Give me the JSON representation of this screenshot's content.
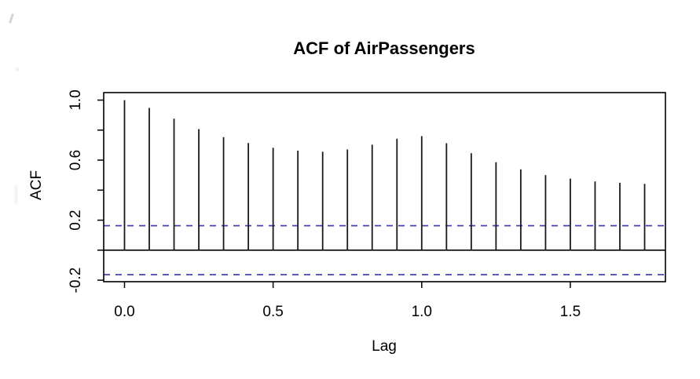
{
  "chart_data": {
    "type": "bar",
    "variant": "acf-stem-plot",
    "title": "ACF of AirPassengers",
    "xlabel": "Lag",
    "ylabel": "ACF",
    "x": [
      0,
      0.0833,
      0.1667,
      0.25,
      0.3333,
      0.4167,
      0.5,
      0.5833,
      0.6667,
      0.75,
      0.8333,
      0.9167,
      1.0,
      1.0833,
      1.1667,
      1.25,
      1.3333,
      1.4167,
      1.5,
      1.5833,
      1.6667,
      1.75
    ],
    "values": [
      1.0,
      0.948,
      0.876,
      0.807,
      0.753,
      0.714,
      0.682,
      0.663,
      0.656,
      0.671,
      0.703,
      0.743,
      0.76,
      0.713,
      0.646,
      0.586,
      0.538,
      0.5,
      0.477,
      0.458,
      0.449,
      0.442
    ],
    "zero_line": 0,
    "confidence_bounds": [
      -0.163,
      0.163
    ],
    "confidence_line_style": "dashed",
    "xlim": [
      -0.07,
      1.82
    ],
    "ylim": [
      -0.21,
      1.05
    ],
    "x_ticks": [
      {
        "v": 0.0,
        "label": "0.0"
      },
      {
        "v": 0.5,
        "label": "0.5"
      },
      {
        "v": 1.0,
        "label": "1.0"
      },
      {
        "v": 1.5,
        "label": "1.5"
      }
    ],
    "y_ticks": [
      {
        "v": -0.2,
        "label": "-0.2"
      },
      {
        "v": 0.0,
        "label": ""
      },
      {
        "v": 0.2,
        "label": "0.2"
      },
      {
        "v": 0.4,
        "label": ""
      },
      {
        "v": 0.6,
        "label": "0.6"
      },
      {
        "v": 0.8,
        "label": ""
      },
      {
        "v": 1.0,
        "label": "1.0"
      }
    ],
    "grid": false,
    "legend": null
  },
  "colors": {
    "spike": "#1a1a1a",
    "confidence_line": "#4444b3",
    "axis": "#000000",
    "background": "#ffffff"
  }
}
